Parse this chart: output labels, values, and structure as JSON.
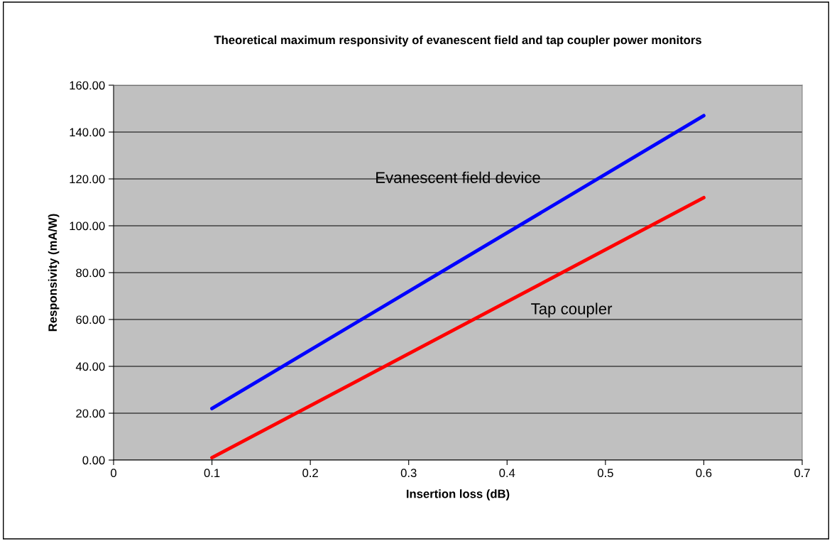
{
  "chart_data": {
    "type": "line",
    "title": "Theoretical maximum responsivity of evanescent field and tap coupler power monitors",
    "xlabel": "Insertion loss (dB)",
    "ylabel": "Responsivity (mA/W)",
    "xlim": [
      0,
      0.7
    ],
    "xticks": [
      0,
      0.1,
      0.2,
      0.3,
      0.4,
      0.5,
      0.6,
      0.7
    ],
    "ylim": [
      0,
      160
    ],
    "yticks": [
      {
        "value": 0,
        "label": "0.00"
      },
      {
        "value": 20,
        "label": "20.00"
      },
      {
        "value": 40,
        "label": "40.00"
      },
      {
        "value": 60,
        "label": "60.00"
      },
      {
        "value": 80,
        "label": "80.00"
      },
      {
        "value": 100,
        "label": "100.00"
      },
      {
        "value": 120,
        "label": "120.00"
      },
      {
        "value": 140,
        "label": "140.00"
      },
      {
        "value": 160,
        "label": "160.00"
      }
    ],
    "grid": "y",
    "legend": false,
    "marker": "none",
    "line_style": "solid",
    "series": [
      {
        "name": "Evanescent field device",
        "color": "#0000ff",
        "x": [
          0.1,
          0.35,
          0.6
        ],
        "values": [
          22,
          84.5,
          147
        ]
      },
      {
        "name": "Tap coupler",
        "color": "#ff0000",
        "x": [
          0.1,
          0.35,
          0.6
        ],
        "values": [
          1,
          56.5,
          112
        ]
      }
    ]
  }
}
